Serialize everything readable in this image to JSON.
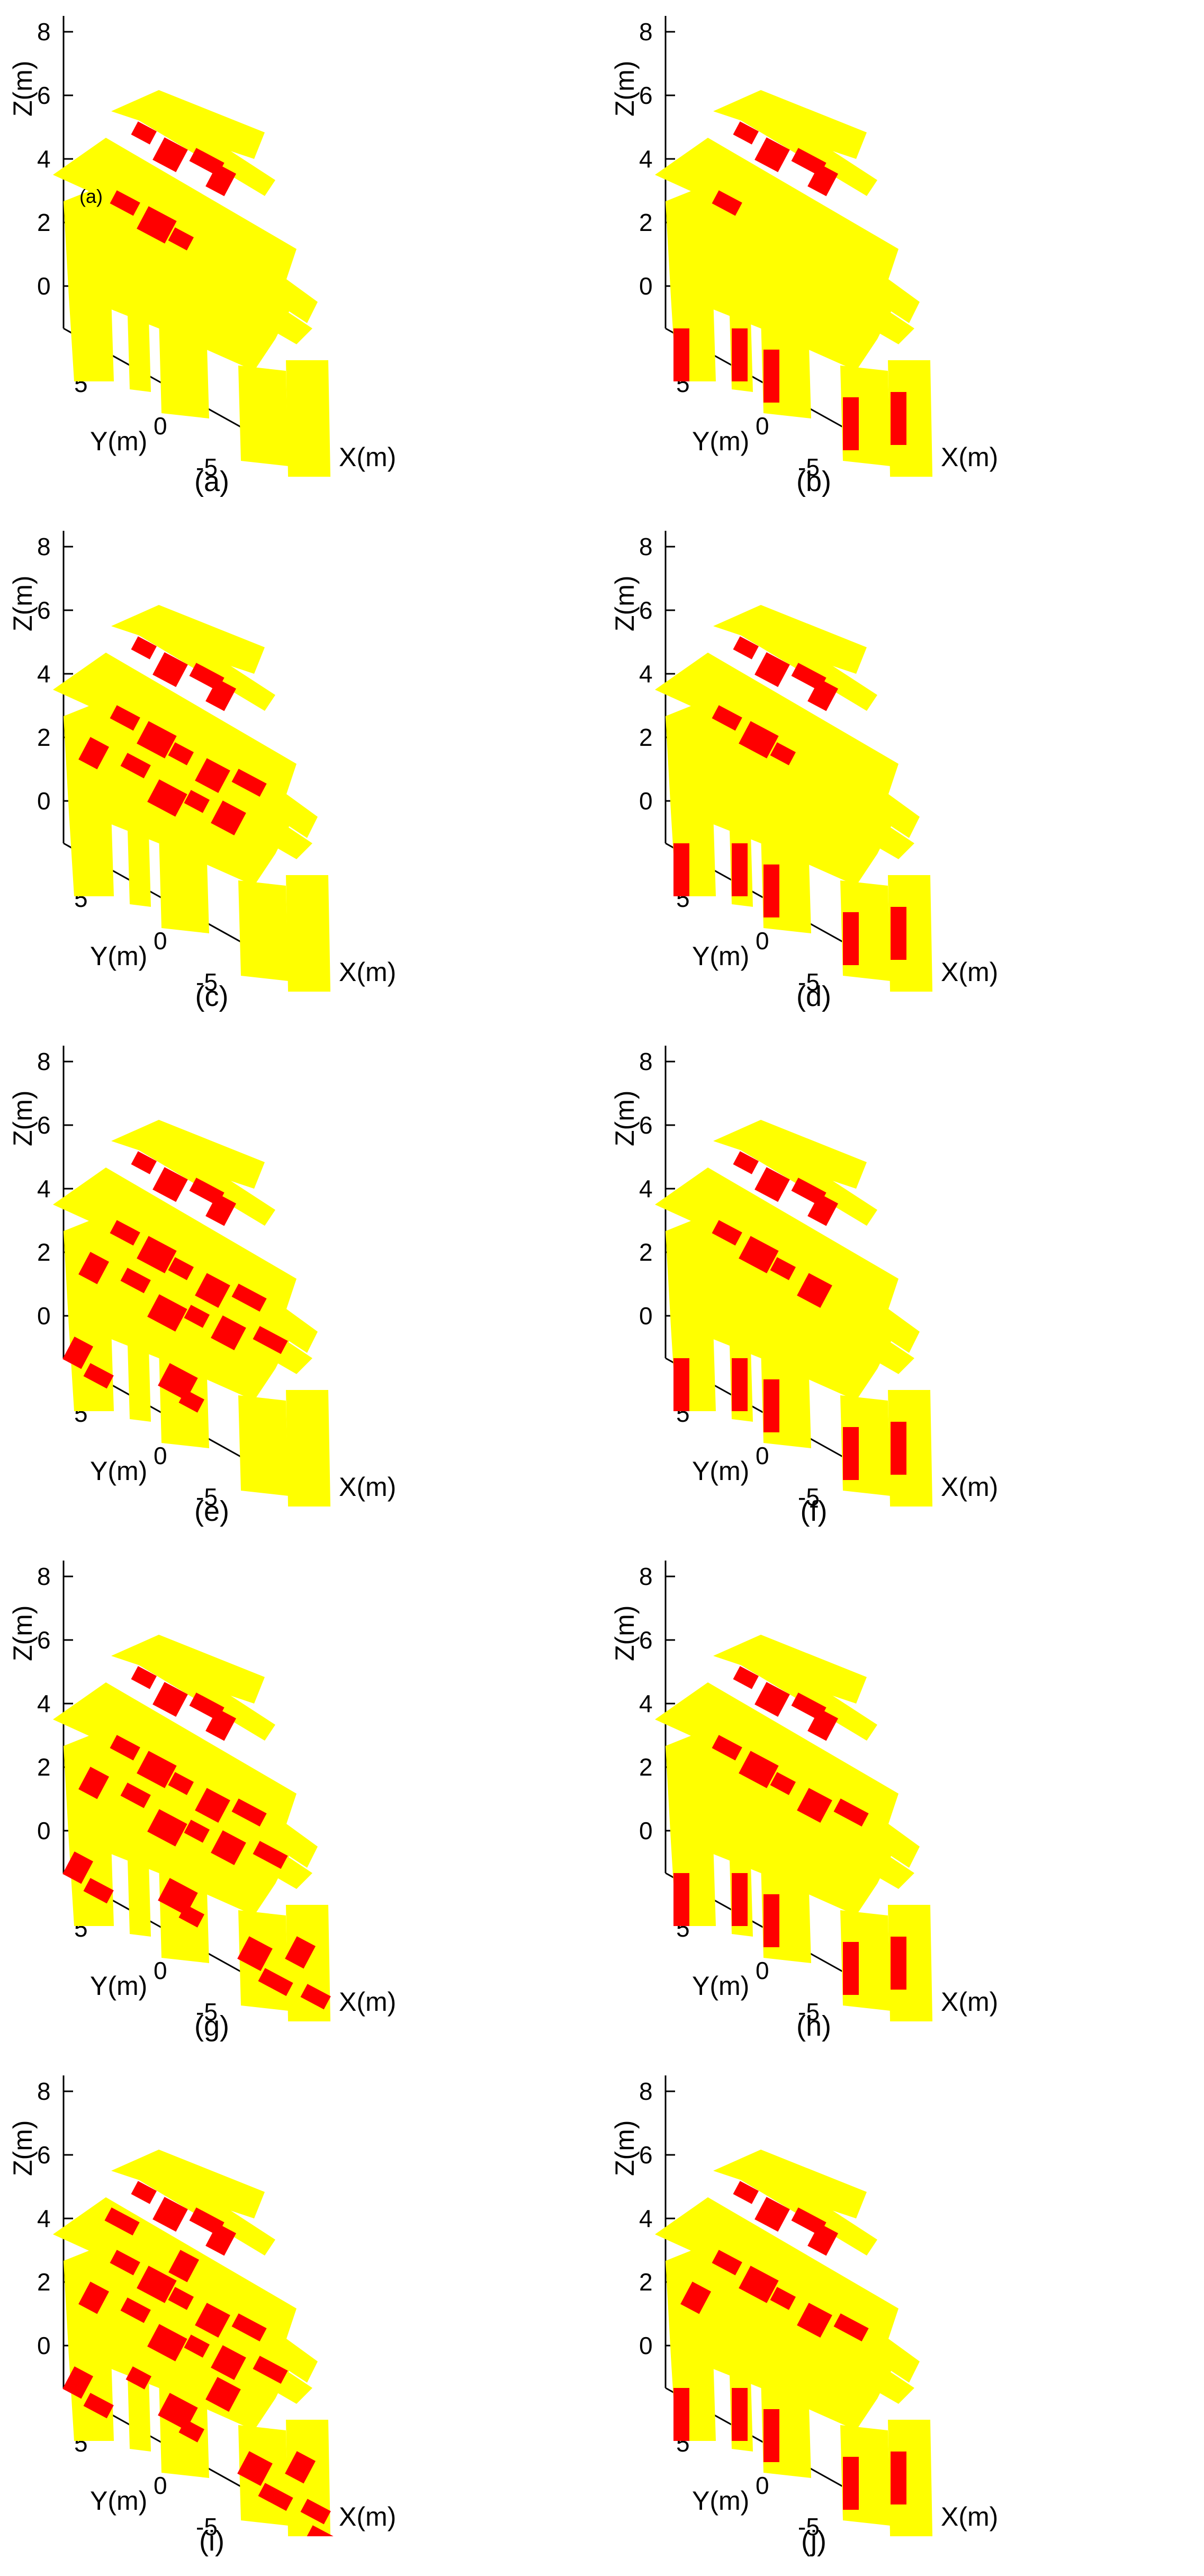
{
  "axes": {
    "x_title": "X(m)",
    "y_title": "Y(m)",
    "z_title": "Z(m)",
    "x_ticks": [
      "0"
    ],
    "y_ticks": [
      "5",
      "0",
      "-5"
    ],
    "z_ticks": [
      "8",
      "6",
      "4",
      "2",
      "0"
    ]
  },
  "colors": {
    "primary": "#ffff00",
    "highlight": "#ff0000"
  },
  "inset_label": "(a)",
  "panels": [
    {
      "caption": "(a)",
      "red_level": 0.18
    },
    {
      "caption": "(b)",
      "red_level": 0.1
    },
    {
      "caption": "(c)",
      "red_level": 0.4
    },
    {
      "caption": "(d)",
      "red_level": 0.16
    },
    {
      "caption": "(e)",
      "red_level": 0.55
    },
    {
      "caption": "(f)",
      "red_level": 0.2
    },
    {
      "caption": "(g)",
      "red_level": 0.7
    },
    {
      "caption": "(h)",
      "red_level": 0.22
    },
    {
      "caption": "(i)",
      "red_level": 0.85
    },
    {
      "caption": "(j)",
      "red_level": 0.25
    }
  ]
}
